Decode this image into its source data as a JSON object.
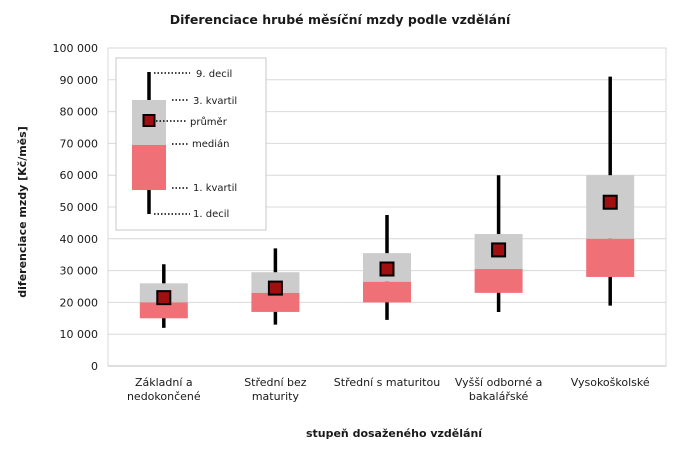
{
  "chart_data": {
    "type": "box",
    "title": "Diferenciace hrubé měsíční mzdy podle vzdělání",
    "xlabel": "stupeň dosaženého vzdělání",
    "ylabel": "diferenciace mzdy [Kč/měs]",
    "ylim": [
      0,
      100000
    ],
    "yticks": [
      0,
      10000,
      20000,
      30000,
      40000,
      50000,
      60000,
      70000,
      80000,
      90000,
      100000
    ],
    "ytick_labels": [
      "0",
      "10 000",
      "20 000",
      "30 000",
      "40 000",
      "50 000",
      "60 000",
      "70 000",
      "80 000",
      "90 000",
      "100 000"
    ],
    "grid": true,
    "legend_position": "top-left",
    "colors": {
      "upper_box": "#cccccc",
      "lower_box": "#f07078",
      "mean_marker": "#a01010",
      "whisker": "#000000",
      "grid": "#d9d9d9"
    },
    "categories": [
      [
        "Základní a",
        "nedokončené"
      ],
      [
        "Střední bez",
        "maturity"
      ],
      [
        "Střední s maturitou"
      ],
      [
        "Vyšší odborné a",
        "bakalářské"
      ],
      [
        "Vysokoškolské"
      ]
    ],
    "series": {
      "decil_1": [
        12000,
        13000,
        14500,
        17000,
        19000
      ],
      "kvartil_1": [
        15000,
        17000,
        20000,
        23000,
        28000
      ],
      "median": [
        20000,
        23000,
        26500,
        30500,
        40000
      ],
      "mean": [
        21500,
        24500,
        30500,
        36500,
        51500
      ],
      "kvartil_3": [
        26000,
        29500,
        35500,
        41500,
        60000
      ],
      "decil_9": [
        32000,
        37000,
        47500,
        60000,
        91000
      ]
    },
    "legend": {
      "decil_9": "9. decil",
      "kvartil_3": "3. kvartil",
      "mean": "průměr",
      "median": "medián",
      "kvartil_1": "1. kvartil",
      "decil_1": "1. decil"
    }
  }
}
